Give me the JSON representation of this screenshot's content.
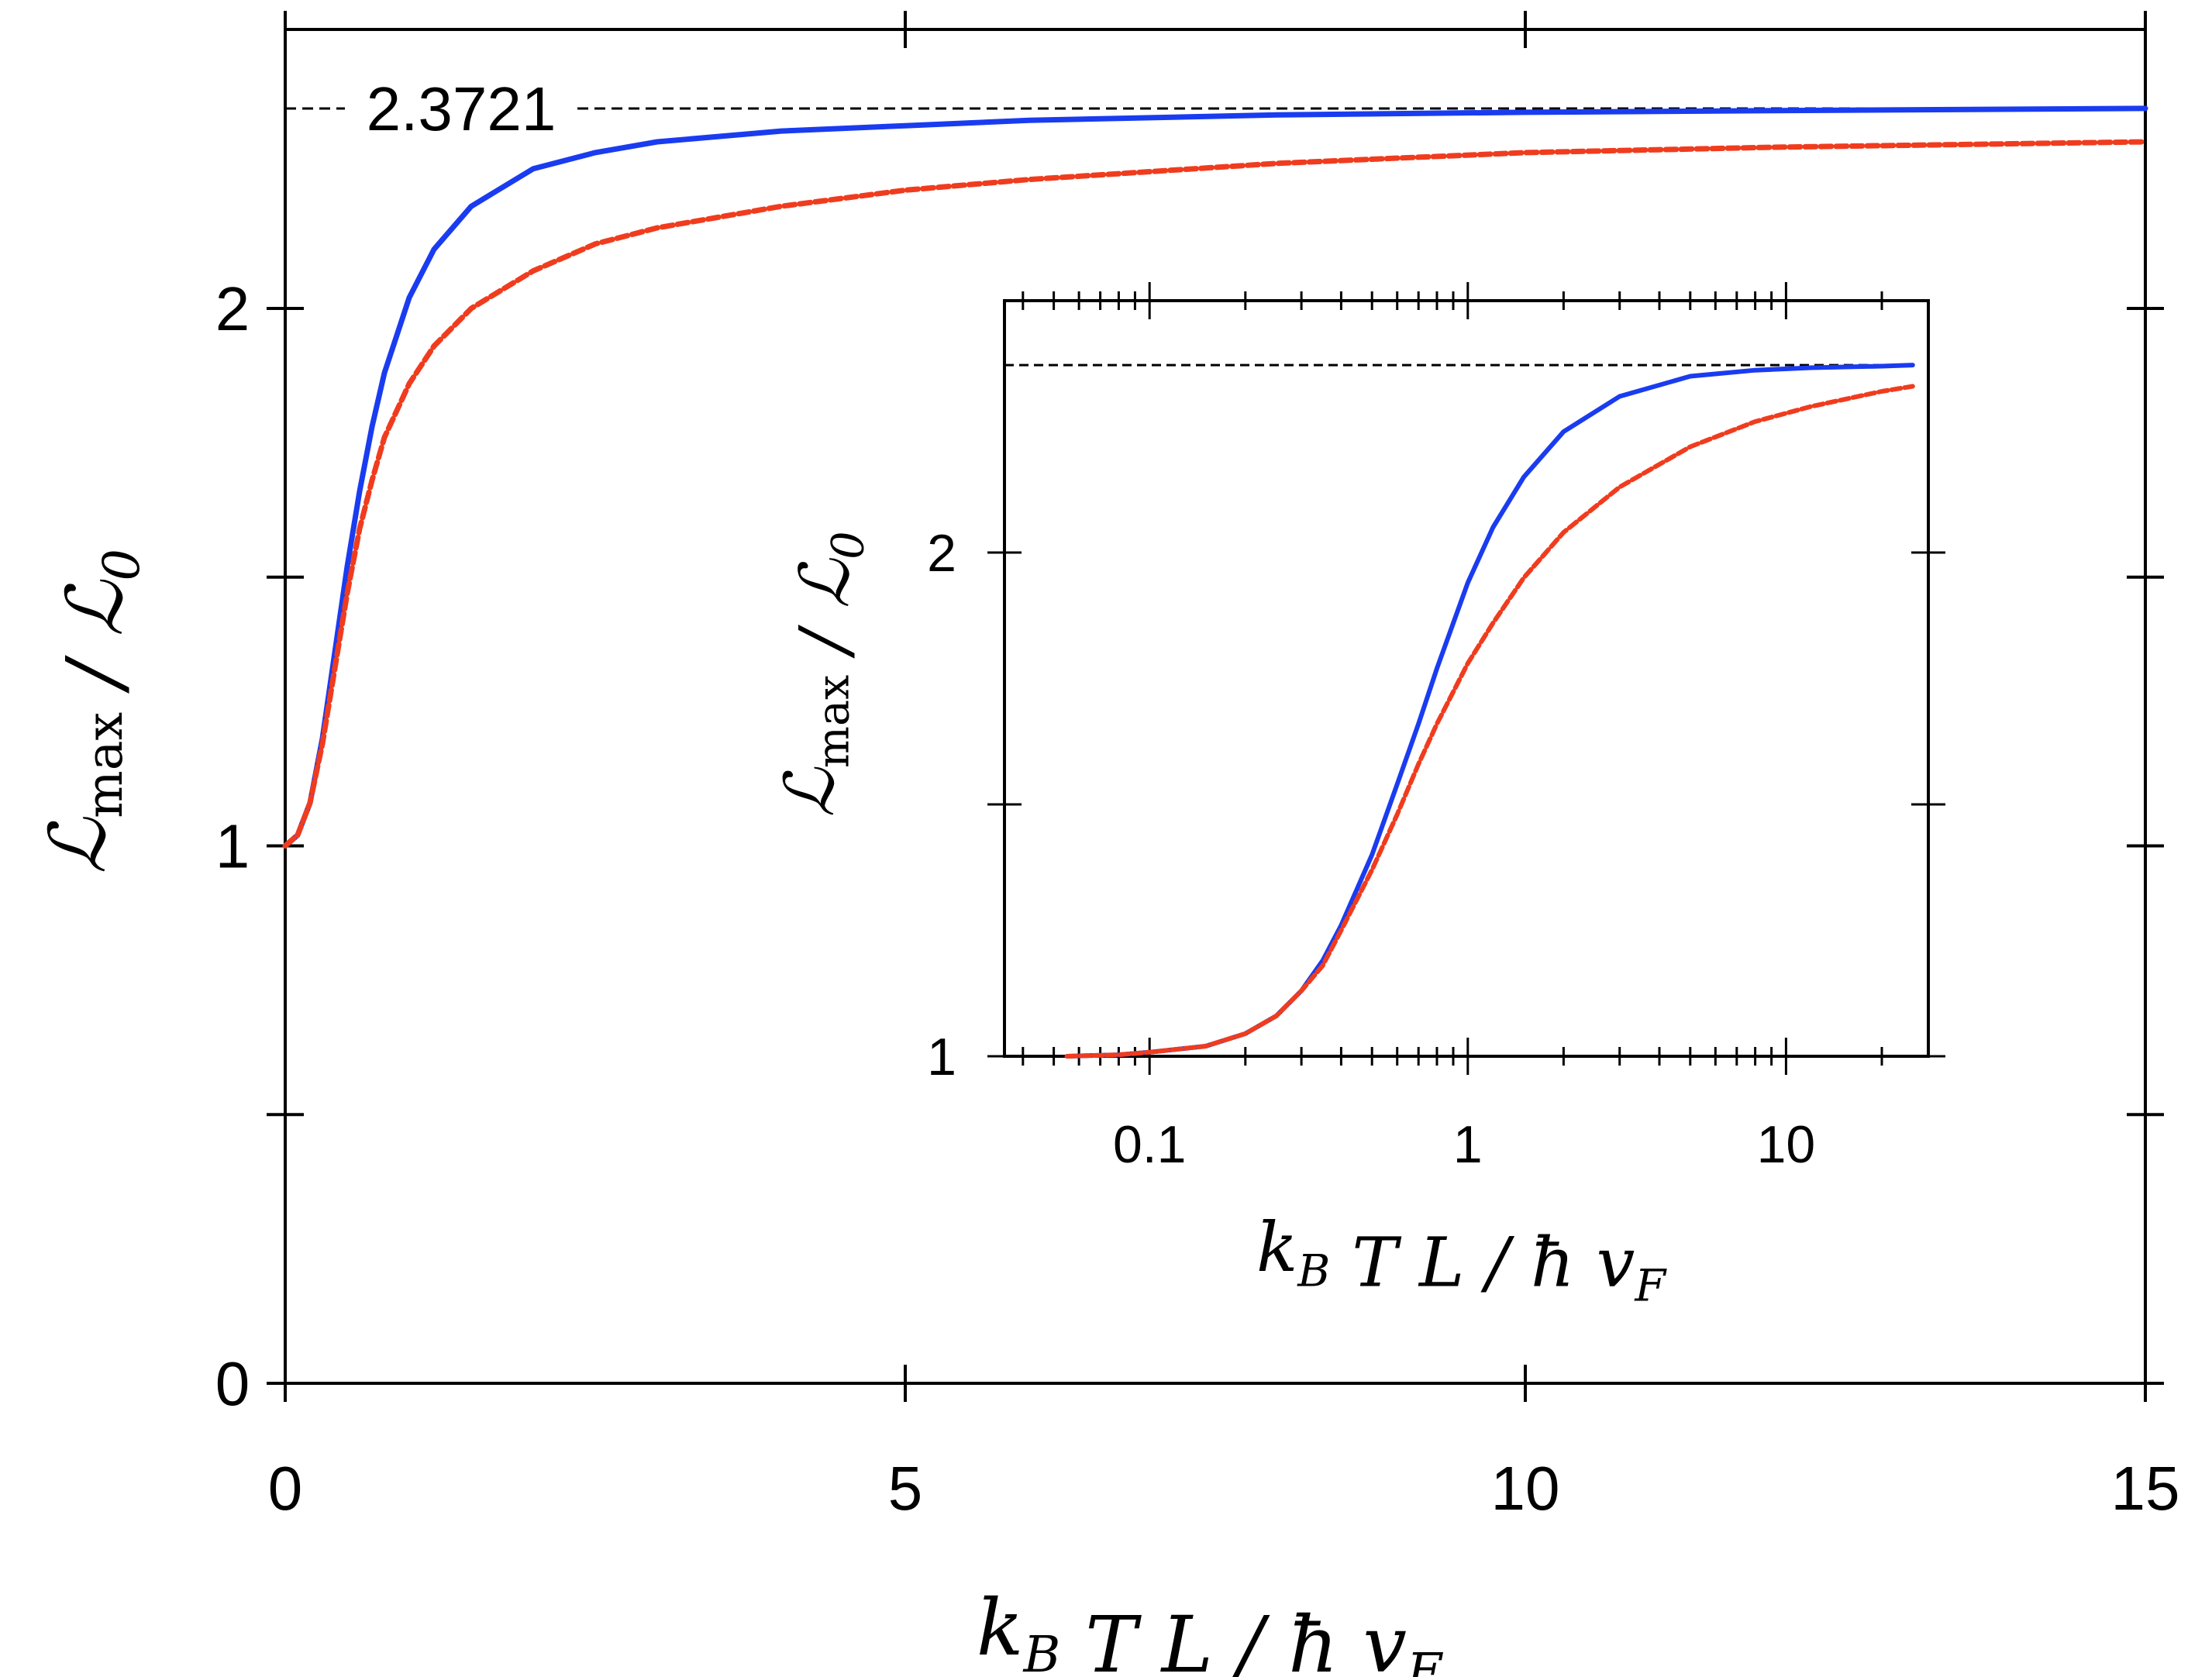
{
  "chart_data": [
    {
      "type": "line",
      "id": "main",
      "title": "",
      "xlabel": "k_B T L / ħ v_F",
      "ylabel": "L_max / L_0",
      "xlim": [
        0,
        15
      ],
      "ylim": [
        0,
        2.5
      ],
      "x_scale": "linear",
      "xticks": [
        0,
        5,
        10,
        15
      ],
      "xtick_labels": [
        "0",
        "5",
        "10",
        "15"
      ],
      "yticks": [
        0,
        0.5,
        1,
        1.5,
        2
      ],
      "ytick_labels": [
        "0",
        "",
        "1",
        "",
        "2"
      ],
      "grid": false,
      "reference_line": {
        "y": 2.3721,
        "label": "2.3721",
        "style": "dashed",
        "color": "#000000"
      },
      "series": [
        {
          "name": "solid-blue",
          "color": "#1a3cf0",
          "style": "solid",
          "x": [
            0,
            0.1,
            0.2,
            0.3,
            0.4,
            0.5,
            0.6,
            0.7,
            0.8,
            1.0,
            1.2,
            1.5,
            2.0,
            2.5,
            3.0,
            4.0,
            5.0,
            6.0,
            8.0,
            10.0,
            12.0,
            15.0
          ],
          "y": [
            1.0,
            1.02,
            1.08,
            1.2,
            1.36,
            1.52,
            1.66,
            1.78,
            1.88,
            2.02,
            2.11,
            2.19,
            2.26,
            2.29,
            2.31,
            2.33,
            2.34,
            2.35,
            2.36,
            2.365,
            2.368,
            2.3721
          ]
        },
        {
          "name": "dashed-red",
          "color": "#f03c1e",
          "style": "dashed",
          "x": [
            0,
            0.1,
            0.2,
            0.3,
            0.4,
            0.5,
            0.6,
            0.7,
            0.8,
            1.0,
            1.2,
            1.5,
            2.0,
            2.5,
            3.0,
            4.0,
            5.0,
            6.0,
            8.0,
            10.0,
            12.0,
            15.0
          ],
          "y": [
            1.0,
            1.02,
            1.08,
            1.19,
            1.33,
            1.47,
            1.59,
            1.68,
            1.76,
            1.86,
            1.93,
            2.0,
            2.07,
            2.12,
            2.15,
            2.19,
            2.22,
            2.24,
            2.27,
            2.29,
            2.3,
            2.31
          ]
        }
      ]
    },
    {
      "type": "line",
      "id": "inset",
      "title": "",
      "xlabel": "k_B T L / ħ v_F",
      "ylabel": "L_max / L_0",
      "x_scale": "log",
      "xlim": [
        0.035,
        28
      ],
      "ylim": [
        1,
        2.5
      ],
      "xticks": [
        0.1,
        1,
        10
      ],
      "xtick_labels": [
        "0.1",
        "1",
        "10"
      ],
      "yticks": [
        1,
        1.5,
        2
      ],
      "ytick_labels": [
        "1",
        "",
        "2"
      ],
      "grid": false,
      "reference_line": {
        "y": 2.3721,
        "style": "dashed",
        "color": "#000000"
      },
      "series": [
        {
          "name": "solid-blue",
          "color": "#1a3cf0",
          "style": "solid",
          "x": [
            0.055,
            0.08,
            0.1,
            0.15,
            0.2,
            0.25,
            0.3,
            0.35,
            0.4,
            0.5,
            0.6,
            0.7,
            0.8,
            1.0,
            1.2,
            1.5,
            2.0,
            3.0,
            5.0,
            8.0,
            12.0,
            20.0,
            25.0
          ],
          "y": [
            1.0,
            1.003,
            1.008,
            1.02,
            1.045,
            1.08,
            1.13,
            1.19,
            1.26,
            1.4,
            1.54,
            1.66,
            1.77,
            1.94,
            2.05,
            2.15,
            2.24,
            2.31,
            2.35,
            2.362,
            2.367,
            2.37,
            2.3721
          ]
        },
        {
          "name": "dashed-red",
          "color": "#f03c1e",
          "style": "dashed",
          "x": [
            0.055,
            0.08,
            0.1,
            0.15,
            0.2,
            0.25,
            0.3,
            0.35,
            0.4,
            0.5,
            0.6,
            0.7,
            0.8,
            1.0,
            1.2,
            1.5,
            2.0,
            3.0,
            5.0,
            8.0,
            12.0,
            20.0,
            25.0
          ],
          "y": [
            1.0,
            1.003,
            1.008,
            1.02,
            1.045,
            1.08,
            1.13,
            1.18,
            1.25,
            1.37,
            1.48,
            1.58,
            1.66,
            1.78,
            1.86,
            1.95,
            2.04,
            2.13,
            2.21,
            2.26,
            2.29,
            2.32,
            2.33
          ]
        }
      ]
    }
  ]
}
